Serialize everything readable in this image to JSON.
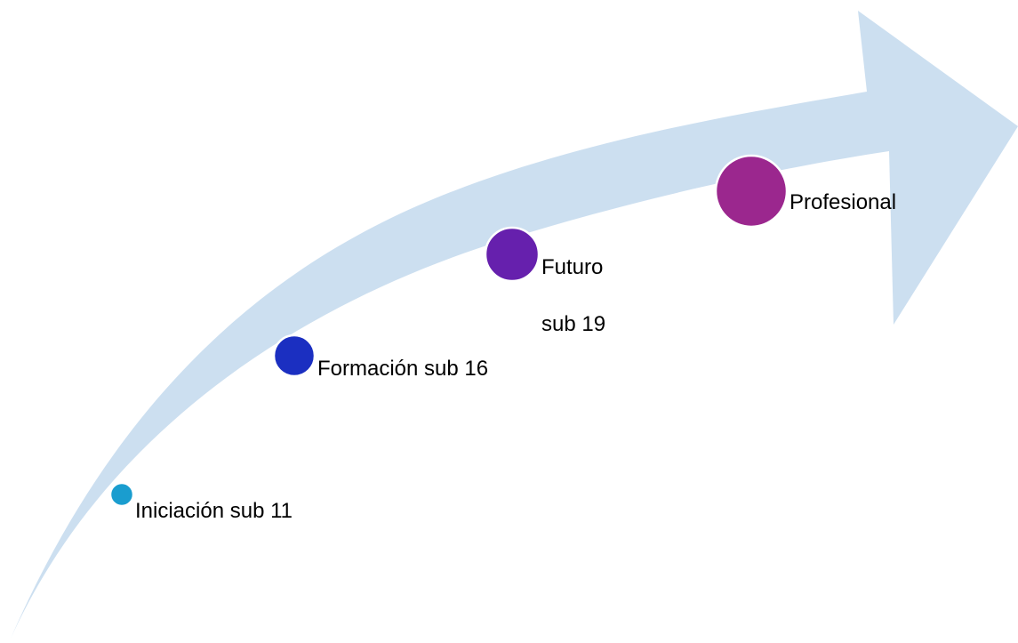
{
  "colors": {
    "arrow": "#ccdff0",
    "node_border": "#ffffff"
  },
  "stages": [
    {
      "id": "iniciacion",
      "label": "Iniciación sub 11",
      "color": "#1a9dcf",
      "level": 1
    },
    {
      "id": "formacion",
      "label": "Formación sub 16",
      "color": "#1b2fc1",
      "level": 2
    },
    {
      "id": "futuro",
      "label": "Futuro",
      "sublabel": "sub 19",
      "color": "#6620ad",
      "level": 3
    },
    {
      "id": "profesional",
      "label": "Profesional",
      "color": "#9b278e",
      "level": 4
    }
  ]
}
